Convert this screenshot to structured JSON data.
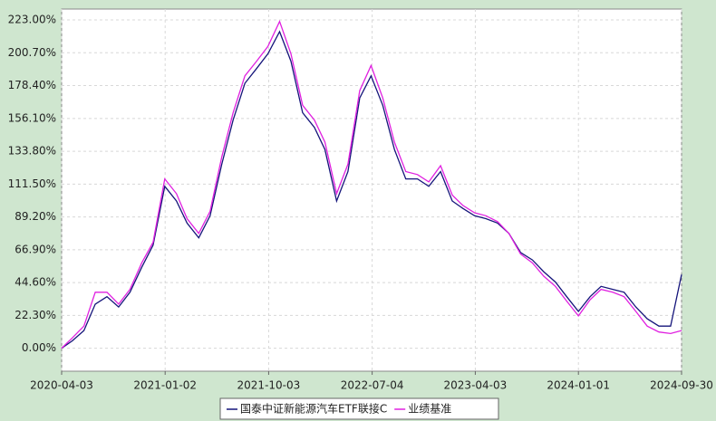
{
  "chart_data": {
    "type": "line",
    "x": [
      "2020-04-03",
      "2020-05-01",
      "2020-06-01",
      "2020-07-01",
      "2020-08-01",
      "2020-09-01",
      "2020-10-01",
      "2020-11-01",
      "2020-12-01",
      "2021-01-01",
      "2021-02-01",
      "2021-03-01",
      "2021-04-01",
      "2021-05-01",
      "2021-06-01",
      "2021-07-01",
      "2021-08-01",
      "2021-09-01",
      "2021-10-01",
      "2021-11-01",
      "2021-12-01",
      "2022-01-01",
      "2022-02-01",
      "2022-03-01",
      "2022-04-01",
      "2022-05-01",
      "2022-06-01",
      "2022-07-01",
      "2022-08-01",
      "2022-09-01",
      "2022-10-01",
      "2022-11-01",
      "2022-12-01",
      "2023-01-01",
      "2023-02-01",
      "2023-03-01",
      "2023-04-01",
      "2023-05-01",
      "2023-06-01",
      "2023-07-01",
      "2023-08-01",
      "2023-09-01",
      "2023-10-01",
      "2023-11-01",
      "2023-12-01",
      "2024-01-01",
      "2024-02-01",
      "2024-03-01",
      "2024-04-01",
      "2024-05-01",
      "2024-06-01",
      "2024-07-01",
      "2024-08-01",
      "2024-09-01",
      "2024-09-30"
    ],
    "series": [
      {
        "name": "国泰中证新能源汽车ETF联接C",
        "color": "#14147a",
        "values": [
          0,
          5,
          12,
          30,
          35,
          28,
          38,
          55,
          70,
          110,
          100,
          85,
          75,
          90,
          125,
          155,
          180,
          190,
          200,
          215,
          195,
          160,
          150,
          135,
          100,
          120,
          170,
          185,
          165,
          135,
          115,
          115,
          110,
          120,
          100,
          95,
          90,
          88,
          85,
          78,
          65,
          60,
          52,
          45,
          35,
          25,
          35,
          42,
          40,
          38,
          28,
          20,
          15,
          15,
          50
        ]
      },
      {
        "name": "业绩基准",
        "color": "#e020e0",
        "values": [
          0,
          7,
          15,
          38,
          38,
          30,
          40,
          58,
          72,
          115,
          105,
          88,
          78,
          93,
          130,
          160,
          185,
          195,
          205,
          222,
          200,
          165,
          155,
          140,
          105,
          125,
          175,
          192,
          170,
          140,
          120,
          118,
          113,
          124,
          104,
          97,
          92,
          90,
          86,
          78,
          64,
          58,
          49,
          42,
          32,
          22,
          33,
          40,
          38,
          35,
          25,
          15,
          11,
          10,
          12
        ]
      }
    ],
    "xlim": [
      "2020-04-03",
      "2024-09-30"
    ],
    "xticks": [
      "2020-04-03",
      "2021-01-02",
      "2021-10-03",
      "2022-07-04",
      "2023-04-03",
      "2024-01-01",
      "2024-09-30"
    ],
    "ylim": [
      -15.6,
      230.4
    ],
    "yticks": [
      {
        "value": 0,
        "label": "0.00%"
      },
      {
        "value": 22.3,
        "label": "22.30%"
      },
      {
        "value": 44.6,
        "label": "44.60%"
      },
      {
        "value": 66.9,
        "label": "66.90%"
      },
      {
        "value": 89.2,
        "label": "89.20%"
      },
      {
        "value": 111.5,
        "label": "111.50%"
      },
      {
        "value": 133.8,
        "label": "133.80%"
      },
      {
        "value": 156.1,
        "label": "156.10%"
      },
      {
        "value": 178.4,
        "label": "178.40%"
      },
      {
        "value": 200.7,
        "label": "200.70%"
      },
      {
        "value": 223,
        "label": "223.00%"
      }
    ],
    "grid": true
  }
}
